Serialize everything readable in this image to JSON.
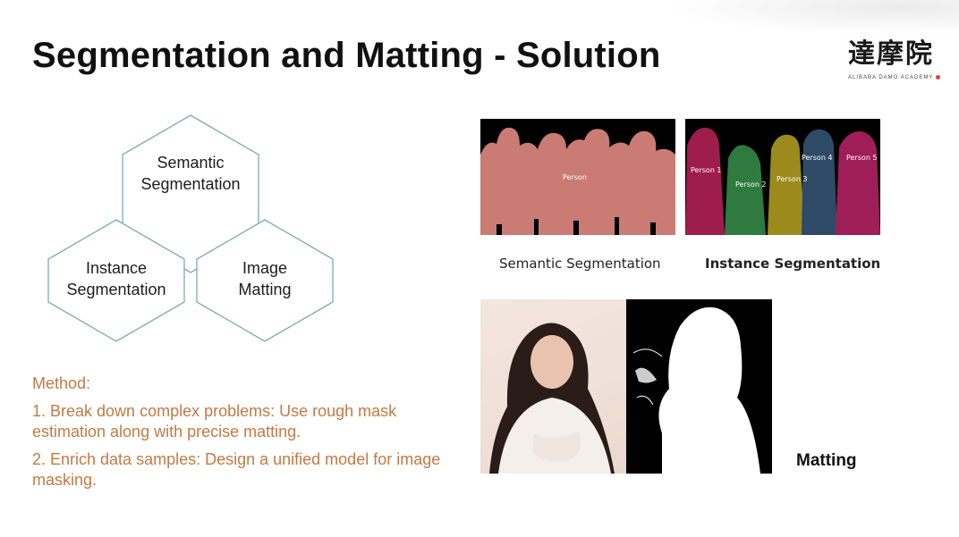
{
  "slide": {
    "title": "Segmentation and Matting - Solution",
    "logo": {
      "chinese": "達摩院",
      "english": "ALIBABA DAMO ACADEMY"
    }
  },
  "diagram": {
    "hexagons": [
      {
        "label_line1": "Semantic",
        "label_line2": "Segmentation"
      },
      {
        "label_line1": "Instance",
        "label_line2": "Segmentation"
      },
      {
        "label_line1": "Image",
        "label_line2": "Matting"
      }
    ],
    "stroke_color": "#7fa9b4"
  },
  "method": {
    "heading": "Method:",
    "items": [
      "1. Break down complex problems: Use rough mask estimation along with precise matting.",
      "2. Enrich data samples: Design a unified model for image masking."
    ],
    "text_color": "#c27a45"
  },
  "figures": {
    "semantic": {
      "caption": "Semantic Segmentation",
      "region_label": "Person",
      "mask_color": "#c97b74"
    },
    "instance": {
      "caption": "Instance Segmentation",
      "labels": [
        "Person 1",
        "Person 2",
        "Person 3",
        "Person 4",
        "Person 5"
      ],
      "colors": [
        "#9e1d4a",
        "#2f7a3f",
        "#9c8a1c",
        "#2f4a66",
        "#a01e57"
      ]
    },
    "matting": {
      "caption": "Matting"
    }
  }
}
